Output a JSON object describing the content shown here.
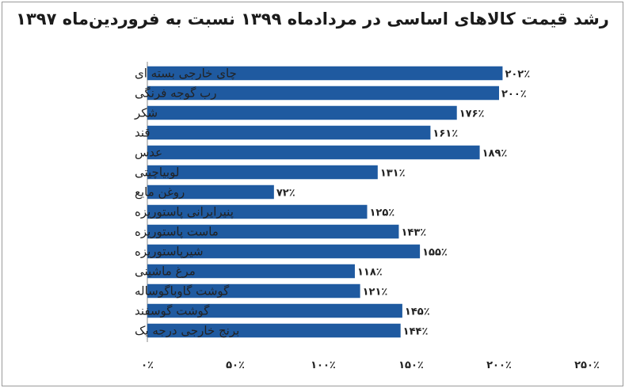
{
  "chart_data": {
    "type": "bar",
    "orientation": "horizontal",
    "title": "رشد قیمت کالاهای اساسی در مردادماه ۱۳۹۹ نسبت به فروردین‌ماه ۱۳۹۷",
    "categories": [
      "چای خارجی بسته ای",
      "رب گوجه فرنگی",
      "شکر",
      "قند",
      "عدس",
      "لوبیاچیتی",
      "روغن مایع",
      "پنیرایرانی پاستوریزه",
      "ماست پاستوریزه",
      "شیرپاستوریزه",
      "مرغ ماشینی",
      "گوشت گاوباگوساله",
      "گوشت گوسفند",
      "برنج خارجی درجه یک"
    ],
    "values": [
      202,
      200,
      176,
      161,
      189,
      131,
      72,
      125,
      143,
      155,
      118,
      121,
      145,
      144
    ],
    "value_labels": [
      "۲۰۲٪",
      "۲۰۰٪",
      "۱۷۶٪",
      "۱۶۱٪",
      "۱۸۹٪",
      "۱۳۱٪",
      "۷۲٪",
      "۱۲۵٪",
      "۱۴۳٪",
      "۱۵۵٪",
      "۱۱۸٪",
      "۱۲۱٪",
      "۱۴۵٪",
      "۱۴۴٪"
    ],
    "xlim": [
      0,
      250
    ],
    "xticks": [
      0,
      50,
      100,
      150,
      200,
      250
    ],
    "xtick_labels": [
      "۰٪",
      "۵۰٪",
      "۱۰۰٪",
      "۱۵۰٪",
      "۲۰۰٪",
      "۲۵۰٪"
    ],
    "bar_color": "#1f5aa0",
    "grid": false,
    "legend": "none"
  }
}
